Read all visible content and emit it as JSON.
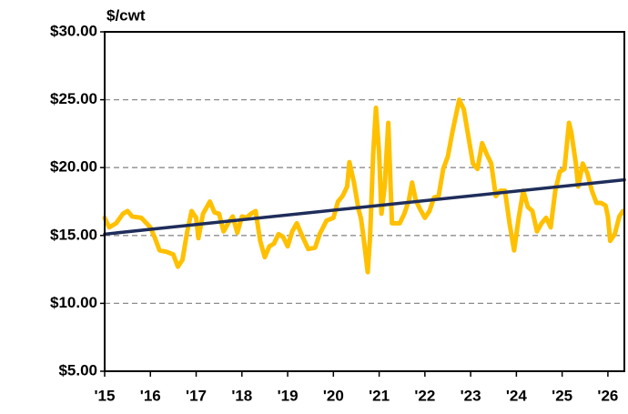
{
  "chart_data": {
    "type": "line",
    "title": "$/cwt",
    "series": [
      {
        "color": "#FFC000",
        "x": [
          2015.0,
          2015.1,
          2015.25,
          2015.4,
          2015.5,
          2015.6,
          2015.8,
          2016.0,
          2016.1,
          2016.2,
          2016.35,
          2016.5,
          2016.6,
          2016.7,
          2016.8,
          2016.9,
          2017.0,
          2017.05,
          2017.15,
          2017.3,
          2017.4,
          2017.5,
          2017.6,
          2017.7,
          2017.8,
          2017.9,
          2018.0,
          2018.1,
          2018.2,
          2018.3,
          2018.4,
          2018.5,
          2018.6,
          2018.7,
          2018.8,
          2018.9,
          2019.0,
          2019.1,
          2019.2,
          2019.3,
          2019.45,
          2019.6,
          2019.7,
          2019.85,
          2020.0,
          2020.1,
          2020.2,
          2020.3,
          2020.35,
          2020.45,
          2020.55,
          2020.6,
          2020.65,
          2020.75,
          2020.8,
          2020.87,
          2020.93,
          2021.0,
          2021.05,
          2021.12,
          2021.2,
          2021.28,
          2021.37,
          2021.45,
          2021.55,
          2021.65,
          2021.72,
          2021.8,
          2021.9,
          2022.0,
          2022.1,
          2022.2,
          2022.3,
          2022.4,
          2022.5,
          2022.6,
          2022.75,
          2022.85,
          2022.95,
          2023.05,
          2023.15,
          2023.25,
          2023.35,
          2023.45,
          2023.55,
          2023.65,
          2023.75,
          2023.85,
          2023.95,
          2024.05,
          2024.15,
          2024.25,
          2024.35,
          2024.45,
          2024.55,
          2024.65,
          2024.75,
          2024.85,
          2024.95,
          2025.05,
          2025.15,
          2025.2,
          2025.3,
          2025.35,
          2025.45,
          2025.55,
          2025.65,
          2025.75,
          2025.85,
          2025.95,
          2026.0,
          2026.05,
          2026.15,
          2026.25,
          2026.33
        ],
        "values": [
          16.3,
          15.6,
          15.9,
          16.6,
          16.8,
          16.4,
          16.3,
          15.6,
          14.8,
          13.9,
          13.8,
          13.6,
          12.7,
          13.2,
          15.2,
          16.8,
          16.3,
          14.8,
          16.6,
          17.5,
          16.7,
          16.6,
          15.3,
          15.9,
          16.4,
          15.2,
          16.4,
          16.3,
          16.6,
          16.8,
          14.6,
          13.4,
          14.2,
          14.4,
          15.1,
          14.9,
          14.2,
          15.3,
          15.9,
          15.1,
          14.0,
          14.1,
          15.1,
          16.1,
          16.3,
          17.5,
          17.9,
          18.6,
          20.4,
          18.9,
          16.9,
          16.3,
          15.1,
          12.3,
          14.8,
          21.0,
          24.4,
          21.0,
          16.6,
          18.6,
          23.3,
          15.9,
          15.9,
          15.9,
          16.6,
          17.6,
          18.9,
          17.6,
          16.9,
          16.3,
          16.8,
          17.8,
          17.9,
          19.9,
          20.8,
          22.6,
          25.0,
          24.3,
          22.3,
          20.3,
          19.9,
          21.8,
          21.0,
          20.3,
          17.9,
          18.3,
          18.3,
          15.9,
          13.9,
          16.3,
          18.3,
          17.1,
          16.8,
          15.3,
          15.9,
          16.3,
          15.6,
          18.3,
          19.7,
          19.9,
          23.3,
          22.6,
          20.3,
          18.6,
          20.3,
          19.6,
          18.3,
          17.4,
          17.4,
          17.2,
          16.4,
          14.6,
          15.1,
          16.4,
          16.8
        ]
      },
      {
        "color": "#1F2D5A",
        "x": [
          2015.0,
          2026.36
        ],
        "values": [
          15.1,
          19.1
        ]
      }
    ],
    "xlim": [
      2015.0,
      2026.36
    ],
    "xticks": [
      {
        "value": 2015,
        "label": "'15"
      },
      {
        "value": 2016,
        "label": "'16"
      },
      {
        "value": 2017,
        "label": "'17"
      },
      {
        "value": 2018,
        "label": "'18"
      },
      {
        "value": 2019,
        "label": "'19"
      },
      {
        "value": 2020,
        "label": "'20"
      },
      {
        "value": 2021,
        "label": "'21"
      },
      {
        "value": 2022,
        "label": "'22"
      },
      {
        "value": 2023,
        "label": "'23"
      },
      {
        "value": 2024,
        "label": "'24"
      },
      {
        "value": 2025,
        "label": "'25"
      },
      {
        "value": 2026,
        "label": "'26"
      }
    ],
    "ylim": [
      5,
      30
    ],
    "yticks": [
      {
        "value": 5,
        "label": "$5.00"
      },
      {
        "value": 10,
        "label": "$10.00"
      },
      {
        "value": 15,
        "label": "$15.00"
      },
      {
        "value": 20,
        "label": "$20.00"
      },
      {
        "value": 25,
        "label": "$25.00"
      },
      {
        "value": 30,
        "label": "$30.00"
      }
    ],
    "grid": true
  }
}
